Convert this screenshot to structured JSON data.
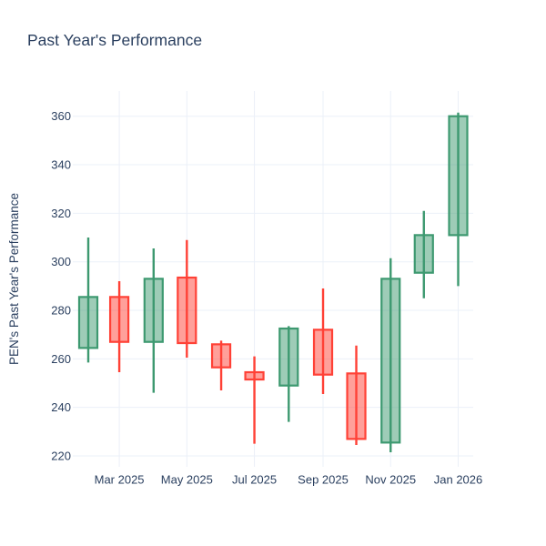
{
  "title": "Past Year's Performance",
  "colors": {
    "text": "#2a3f5f",
    "grid": "#ebf0f8",
    "background": "#ffffff",
    "increasing_line": "#3D9970",
    "increasing_fill": "rgba(61,153,112,0.5)",
    "decreasing_line": "#FF4136",
    "decreasing_fill": "rgba(255,65,54,0.5)"
  },
  "chart_data": {
    "type": "candlestick",
    "title": "Past Year's Performance",
    "xlabel": "",
    "ylabel": "PEN's Past Year's Performance",
    "grid": true,
    "legend_position": "none",
    "ylim": [
      215.5,
      370.4
    ],
    "y_ticks": [
      220,
      240,
      260,
      280,
      300,
      320,
      340,
      360
    ],
    "x_ticks": [
      "Mar 2025",
      "May 2025",
      "Jul 2025",
      "Sep 2025",
      "Nov 2025",
      "Jan 2026"
    ],
    "candles": [
      {
        "month": "Feb 2025",
        "open": 264.5,
        "high": 310,
        "low": 258.5,
        "close": 285.5
      },
      {
        "month": "Mar 2025",
        "open": 285.5,
        "high": 292,
        "low": 254.5,
        "close": 267
      },
      {
        "month": "Apr 2025",
        "open": 267,
        "high": 305.5,
        "low": 246,
        "close": 293
      },
      {
        "month": "May 2025",
        "open": 293.5,
        "high": 309,
        "low": 260.5,
        "close": 266.5
      },
      {
        "month": "Jun 2025",
        "open": 266,
        "high": 267.5,
        "low": 247,
        "close": 256.5
      },
      {
        "month": "Jul 2025",
        "open": 254.5,
        "high": 261,
        "low": 225,
        "close": 251.5
      },
      {
        "month": "Aug 2025",
        "open": 249,
        "high": 273.5,
        "low": 234,
        "close": 272.5
      },
      {
        "month": "Sep 2025",
        "open": 272,
        "high": 289,
        "low": 245.5,
        "close": 253.5
      },
      {
        "month": "Oct 2025",
        "open": 254,
        "high": 265.5,
        "low": 224.5,
        "close": 227
      },
      {
        "month": "Nov 2025",
        "open": 225.5,
        "high": 301.5,
        "low": 221.5,
        "close": 293
      },
      {
        "month": "Dec 2025",
        "open": 295.5,
        "high": 321,
        "low": 285,
        "close": 311
      },
      {
        "month": "Jan 2026",
        "open": 311,
        "high": 361.5,
        "low": 290,
        "close": 360
      }
    ]
  }
}
